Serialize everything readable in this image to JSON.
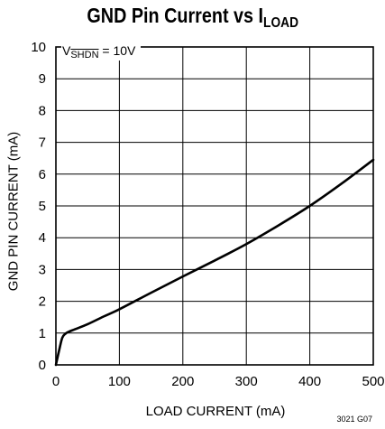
{
  "chart_data": {
    "type": "line",
    "title": "GND Pin Current vs I",
    "title_sub": "LOAD",
    "xlabel": "LOAD CURRENT (mA)",
    "ylabel": "GND PIN CURRENT (mA)",
    "xlim": [
      0,
      500
    ],
    "ylim": [
      0,
      10
    ],
    "xticks": [
      0,
      100,
      200,
      300,
      400,
      500
    ],
    "yticks": [
      0,
      1,
      2,
      3,
      4,
      5,
      6,
      7,
      8,
      9,
      10
    ],
    "grid": true,
    "annotation": {
      "prefix": "V",
      "sub": "SHDN",
      "suffix": " = 10V"
    },
    "figure_id": "3021 G07",
    "series": [
      {
        "color": "#000000",
        "x": [
          0,
          5,
          10,
          15,
          20,
          30,
          50,
          75,
          100,
          150,
          200,
          250,
          300,
          350,
          400,
          450,
          500
        ],
        "y": [
          0,
          0.45,
          0.85,
          0.98,
          1.04,
          1.12,
          1.28,
          1.52,
          1.75,
          2.27,
          2.78,
          3.28,
          3.8,
          4.38,
          5.0,
          5.7,
          6.45
        ]
      }
    ]
  }
}
